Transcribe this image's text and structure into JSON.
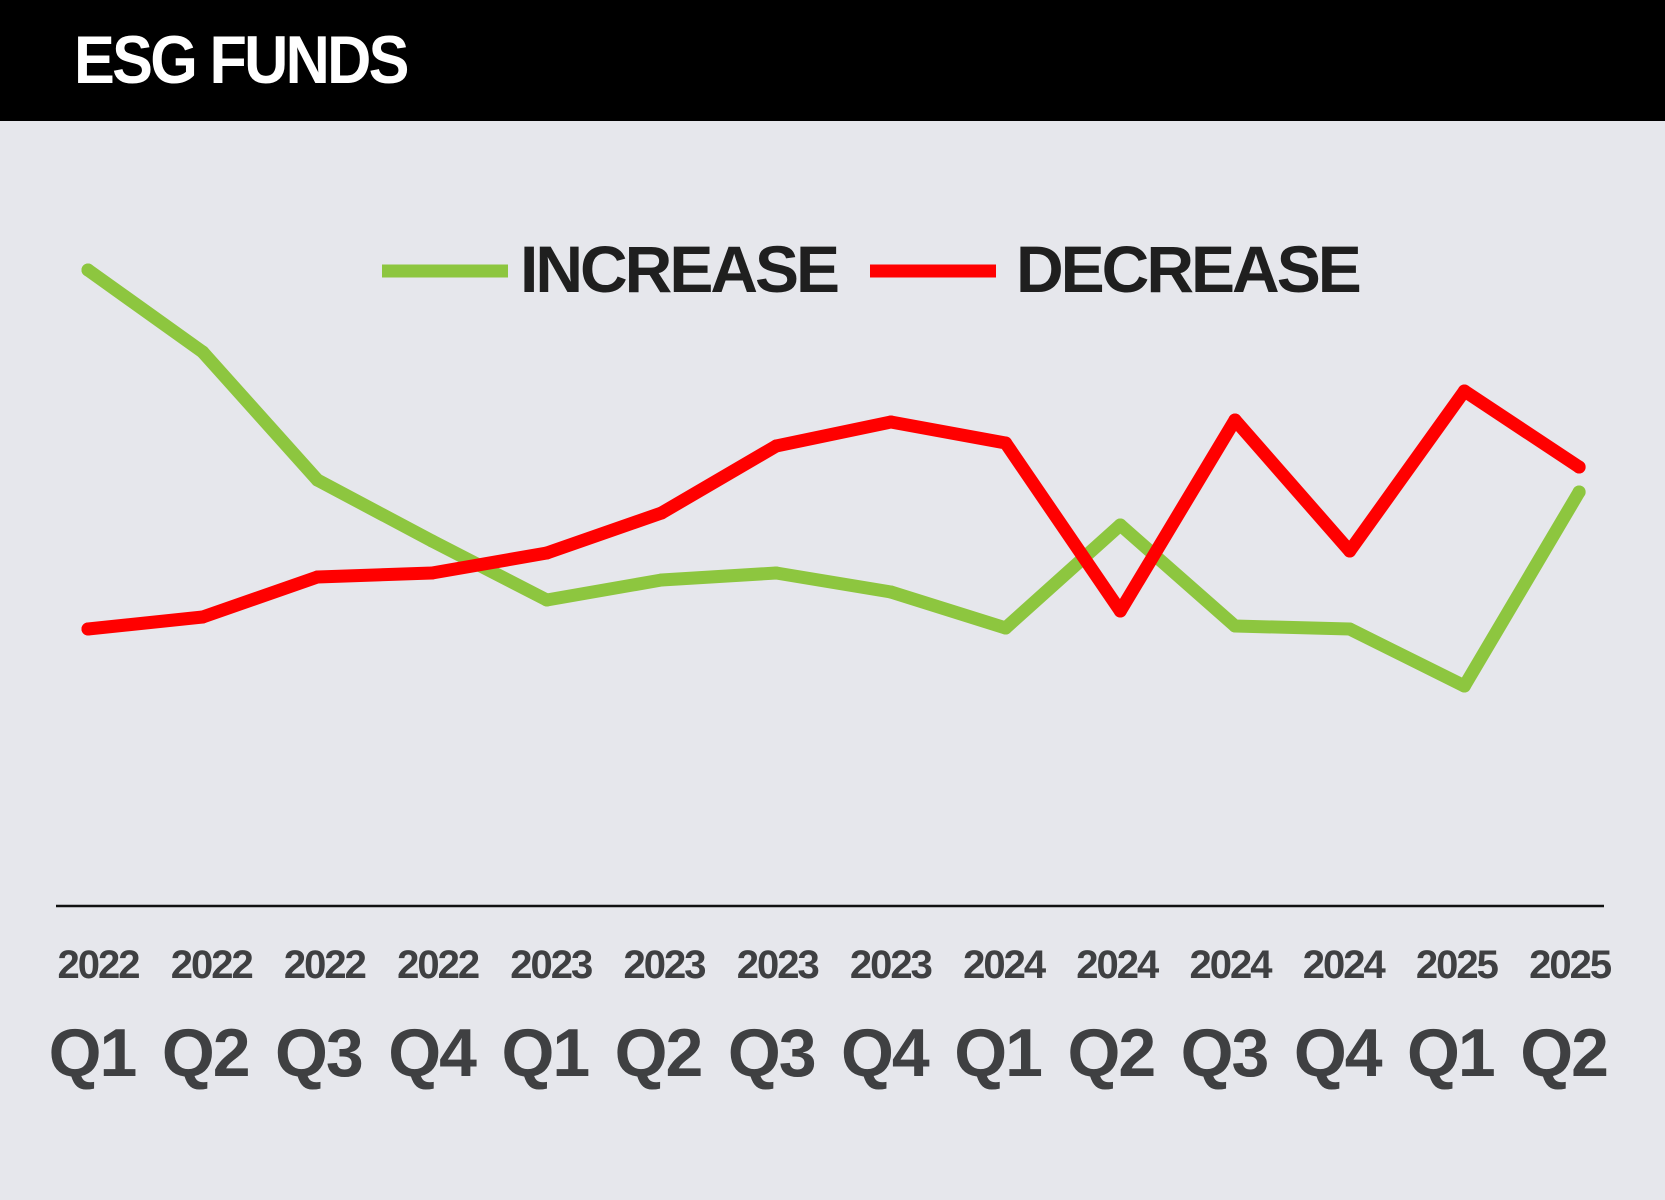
{
  "header": {
    "title": "ESG FUNDS"
  },
  "colors": {
    "header_bg": "#000000",
    "background": "#e6e7ec",
    "increase": "#8dc63f",
    "decrease": "#ff0000",
    "text": "#3f4042"
  },
  "chart_data": {
    "type": "line",
    "title": "ESG FUNDS",
    "xlabel": "",
    "ylabel": "",
    "ylim": [
      0,
      100
    ],
    "grid": false,
    "legend_position": "top-center",
    "x": [
      {
        "year": "2022",
        "quarter": "Q1"
      },
      {
        "year": "2022",
        "quarter": "Q2"
      },
      {
        "year": "2022",
        "quarter": "Q3"
      },
      {
        "year": "2022",
        "quarter": "Q4"
      },
      {
        "year": "2023",
        "quarter": "Q1"
      },
      {
        "year": "2023",
        "quarter": "Q2"
      },
      {
        "year": "2023",
        "quarter": "Q3"
      },
      {
        "year": "2023",
        "quarter": "Q4"
      },
      {
        "year": "2024",
        "quarter": "Q1"
      },
      {
        "year": "2024",
        "quarter": "Q2"
      },
      {
        "year": "2024",
        "quarter": "Q3"
      },
      {
        "year": "2024",
        "quarter": "Q4"
      },
      {
        "year": "2025",
        "quarter": "Q1"
      },
      {
        "year": "2025",
        "quarter": "Q2"
      }
    ],
    "series": [
      {
        "name": "INCREASE",
        "color": "#8dc63f",
        "values": [
          85.0,
          76.8,
          64.0,
          57.9,
          52.0,
          54.0,
          54.7,
          52.8,
          49.2,
          59.5,
          49.4,
          49.1,
          43.4,
          62.8
        ]
      },
      {
        "name": "DECREASE",
        "color": "#ff0000",
        "values": [
          49.1,
          50.3,
          54.3,
          54.7,
          56.7,
          60.7,
          67.4,
          69.8,
          67.7,
          50.9,
          70.0,
          56.9,
          72.9,
          65.3
        ]
      }
    ]
  }
}
